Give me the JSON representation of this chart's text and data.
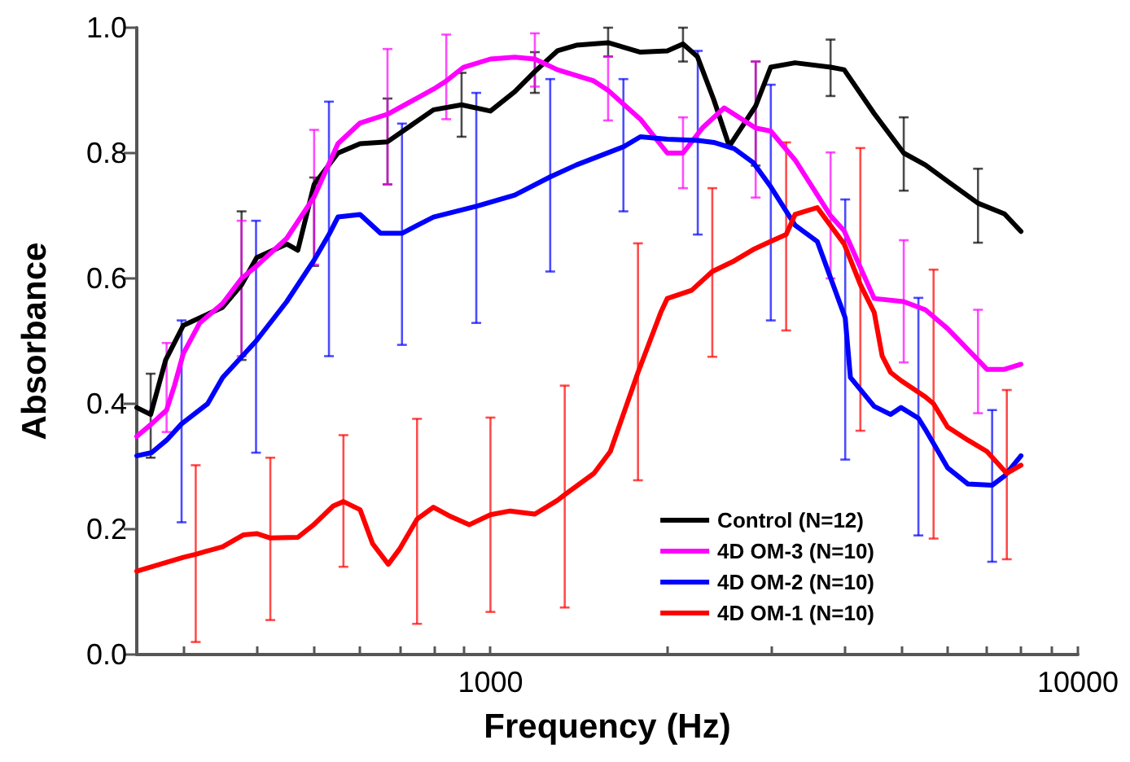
{
  "chart_data": {
    "type": "line",
    "xlabel": "Frequency (Hz)",
    "ylabel": "Absorbance",
    "log": "x",
    "legend": "bottom right",
    "marker": "none",
    "line_style": "solid",
    "xlim": [
      250,
      10000
    ],
    "xticks": [
      {
        "value": 300,
        "label": null
      },
      {
        "value": 400,
        "label": null
      },
      {
        "value": 500,
        "label": null
      },
      {
        "value": 600,
        "label": null
      },
      {
        "value": 700,
        "label": null
      },
      {
        "value": 800,
        "label": null
      },
      {
        "value": 900,
        "label": null
      },
      1000,
      {
        "value": 2000,
        "label": null
      },
      {
        "value": 3000,
        "label": null
      },
      {
        "value": 4000,
        "label": null
      },
      {
        "value": 5000,
        "label": null
      },
      {
        "value": 6000,
        "label": null
      },
      {
        "value": 7000,
        "label": null
      },
      {
        "value": 8000,
        "label": null
      },
      {
        "value": 9000,
        "label": null
      },
      10000
    ],
    "ylim": [
      0,
      1.0
    ],
    "yticks": [
      {
        "value": 0,
        "label": "0.0"
      },
      {
        "value": 0.2,
        "label": "0.2"
      },
      {
        "value": 0.4,
        "label": "0.4"
      },
      {
        "value": 0.6,
        "label": "0.6"
      },
      {
        "value": 0.8,
        "label": "0.8"
      },
      {
        "value": 1.0,
        "label": "1.0"
      }
    ],
    "series": [
      {
        "name": "Control (N=12)",
        "color": "#000000",
        "x": [
          250,
          264,
          280,
          300,
          350,
          377,
          400,
          450,
          470,
          501,
          550,
          600,
          668,
          800,
          893,
          1000,
          1100,
          1190,
          1300,
          1400,
          1586,
          1800,
          2000,
          2127,
          2250,
          2400,
          2550,
          2828,
          3000,
          3300,
          3793,
          4000,
          4500,
          5053,
          5500,
          6000,
          6760,
          7500,
          8000
        ],
        "values": [
          0.394,
          0.383,
          0.47,
          0.525,
          0.554,
          0.59,
          0.633,
          0.655,
          0.645,
          0.75,
          0.8,
          0.815,
          0.818,
          0.869,
          0.877,
          0.867,
          0.898,
          0.93,
          0.963,
          0.972,
          0.976,
          0.961,
          0.963,
          0.974,
          0.954,
          0.885,
          0.811,
          0.875,
          0.937,
          0.944,
          0.937,
          0.933,
          0.863,
          0.8,
          0.781,
          0.755,
          0.72,
          0.703,
          0.675
        ],
        "errors": [
          null,
          [
            0.314,
            0.448
          ],
          null,
          null,
          null,
          [
            0.47,
            0.707
          ],
          null,
          null,
          null,
          [
            0.62,
            0.761
          ],
          null,
          null,
          [
            0.75,
            0.887
          ],
          null,
          [
            0.826,
            0.928
          ],
          null,
          null,
          [
            0.896,
            0.961
          ],
          null,
          null,
          [
            0.954,
            1.0
          ],
          null,
          null,
          [
            0.946,
            1.0
          ],
          null,
          null,
          null,
          [
            0.78,
            0.946
          ],
          null,
          null,
          [
            0.891,
            0.981
          ],
          null,
          null,
          [
            0.74,
            0.857
          ],
          null,
          null,
          [
            0.657,
            0.775
          ],
          null,
          null
        ]
      },
      {
        "name": "4D OM-3 (N=10)",
        "color": "#ff00ff",
        "x": [
          250,
          265,
          281,
          290,
          300,
          320,
          350,
          377,
          400,
          450,
          501,
          550,
          600,
          668,
          800,
          841,
          900,
          1000,
          1100,
          1190,
          1300,
          1500,
          1586,
          1800,
          2000,
          2127,
          2300,
          2500,
          2828,
          3000,
          3300,
          3793,
          4000,
          4500,
          5053,
          5500,
          6000,
          6760,
          7000,
          7500,
          8000
        ],
        "values": [
          0.348,
          0.368,
          0.39,
          0.43,
          0.48,
          0.529,
          0.56,
          0.6,
          0.62,
          0.664,
          0.73,
          0.815,
          0.848,
          0.862,
          0.902,
          0.915,
          0.937,
          0.95,
          0.953,
          0.95,
          0.933,
          0.915,
          0.9,
          0.854,
          0.8,
          0.8,
          0.841,
          0.872,
          0.84,
          0.835,
          0.789,
          0.7,
          0.676,
          0.568,
          0.563,
          0.55,
          0.52,
          0.47,
          0.455,
          0.455,
          0.463
        ],
        "errors": [
          null,
          null,
          [
            0.355,
            0.497
          ],
          null,
          null,
          null,
          null,
          [
            0.476,
            0.692
          ],
          null,
          null,
          [
            0.622,
            0.837
          ],
          null,
          null,
          [
            0.75,
            0.966
          ],
          null,
          [
            0.854,
            0.989
          ],
          null,
          null,
          null,
          [
            0.906,
            0.991
          ],
          null,
          null,
          [
            0.852,
            0.954
          ],
          null,
          null,
          [
            0.744,
            0.857
          ],
          null,
          null,
          [
            0.729,
            0.946
          ],
          null,
          null,
          [
            0.6,
            0.801
          ],
          null,
          null,
          [
            0.466,
            0.661
          ],
          null,
          null,
          [
            0.385,
            0.55
          ],
          null,
          null,
          null
        ]
      },
      {
        "name": "4D OM-2 (N=10)",
        "color": "#0000ff",
        "x": [
          250,
          265,
          281,
          298,
          330,
          350,
          399,
          450,
          500,
          531,
          550,
          600,
          650,
          707,
          800,
          946,
          1100,
          1264,
          1400,
          1684,
          1800,
          2000,
          2254,
          2400,
          2600,
          2800,
          3001,
          3300,
          3600,
          4017,
          4100,
          4500,
          4800,
          5000,
          5352,
          5500,
          6000,
          6500,
          7145,
          7500,
          8000
        ],
        "values": [
          0.317,
          0.322,
          0.342,
          0.368,
          0.4,
          0.442,
          0.5,
          0.563,
          0.628,
          0.67,
          0.698,
          0.702,
          0.672,
          0.672,
          0.698,
          0.715,
          0.733,
          0.762,
          0.781,
          0.81,
          0.826,
          0.822,
          0.82,
          0.817,
          0.807,
          0.785,
          0.746,
          0.685,
          0.659,
          0.537,
          0.442,
          0.396,
          0.383,
          0.394,
          0.377,
          0.359,
          0.298,
          0.272,
          0.27,
          0.285,
          0.317
        ],
        "errors": [
          null,
          null,
          null,
          [
            0.211,
            0.533
          ],
          null,
          null,
          [
            0.322,
            0.692
          ],
          null,
          null,
          [
            0.476,
            0.882
          ],
          null,
          null,
          null,
          [
            0.494,
            0.847
          ],
          null,
          [
            0.529,
            0.896
          ],
          null,
          [
            0.611,
            0.918
          ],
          null,
          [
            0.707,
            0.918
          ],
          null,
          null,
          [
            0.67,
            0.963
          ],
          null,
          null,
          null,
          [
            0.533,
            0.909
          ],
          null,
          null,
          [
            0.311,
            0.726
          ],
          null,
          null,
          null,
          null,
          [
            0.19,
            0.569
          ],
          null,
          null,
          null,
          [
            0.148,
            0.39
          ],
          null,
          null
        ]
      },
      {
        "name": "4D OM-1 (N=10)",
        "color": "#ff0000",
        "x": [
          250,
          300,
          315,
          350,
          380,
          400,
          422,
          470,
          500,
          540,
          562,
          600,
          630,
          670,
          700,
          750,
          800,
          856,
          920,
          1000,
          1080,
          1190,
          1300,
          1338,
          1500,
          1600,
          1783,
          1950,
          2000,
          2200,
          2386,
          2600,
          2800,
          3000,
          3187,
          3300,
          3600,
          4000,
          4263,
          4500,
          4644,
          4800,
          5000,
          5500,
          5680,
          6000,
          6500,
          7000,
          7568,
          8000
        ],
        "values": [
          0.133,
          0.155,
          0.16,
          0.172,
          0.191,
          0.193,
          0.186,
          0.187,
          0.207,
          0.237,
          0.244,
          0.231,
          0.177,
          0.144,
          0.168,
          0.216,
          0.235,
          0.22,
          0.207,
          0.223,
          0.229,
          0.224,
          0.246,
          0.255,
          0.289,
          0.324,
          0.45,
          0.546,
          0.568,
          0.581,
          0.611,
          0.628,
          0.646,
          0.659,
          0.67,
          0.702,
          0.713,
          0.655,
          0.59,
          0.546,
          0.476,
          0.45,
          0.437,
          0.411,
          0.4,
          0.363,
          0.342,
          0.324,
          0.289,
          0.302
        ],
        "errors": [
          null,
          null,
          [
            0.02,
            0.302
          ],
          null,
          null,
          null,
          [
            0.055,
            0.314
          ],
          null,
          null,
          null,
          [
            0.14,
            0.35
          ],
          null,
          null,
          null,
          null,
          [
            0.049,
            0.376
          ],
          null,
          null,
          null,
          [
            0.068,
            0.378
          ],
          null,
          null,
          null,
          [
            0.075,
            0.429
          ],
          null,
          null,
          [
            0.278,
            0.656
          ],
          null,
          null,
          null,
          [
            0.475,
            0.744
          ],
          null,
          null,
          null,
          [
            0.517,
            0.817
          ],
          null,
          null,
          null,
          [
            0.357,
            0.808
          ],
          null,
          null,
          null,
          null,
          null,
          [
            0.185,
            0.614
          ],
          null,
          null,
          null,
          [
            0.152,
            0.422
          ],
          null
        ]
      }
    ]
  }
}
